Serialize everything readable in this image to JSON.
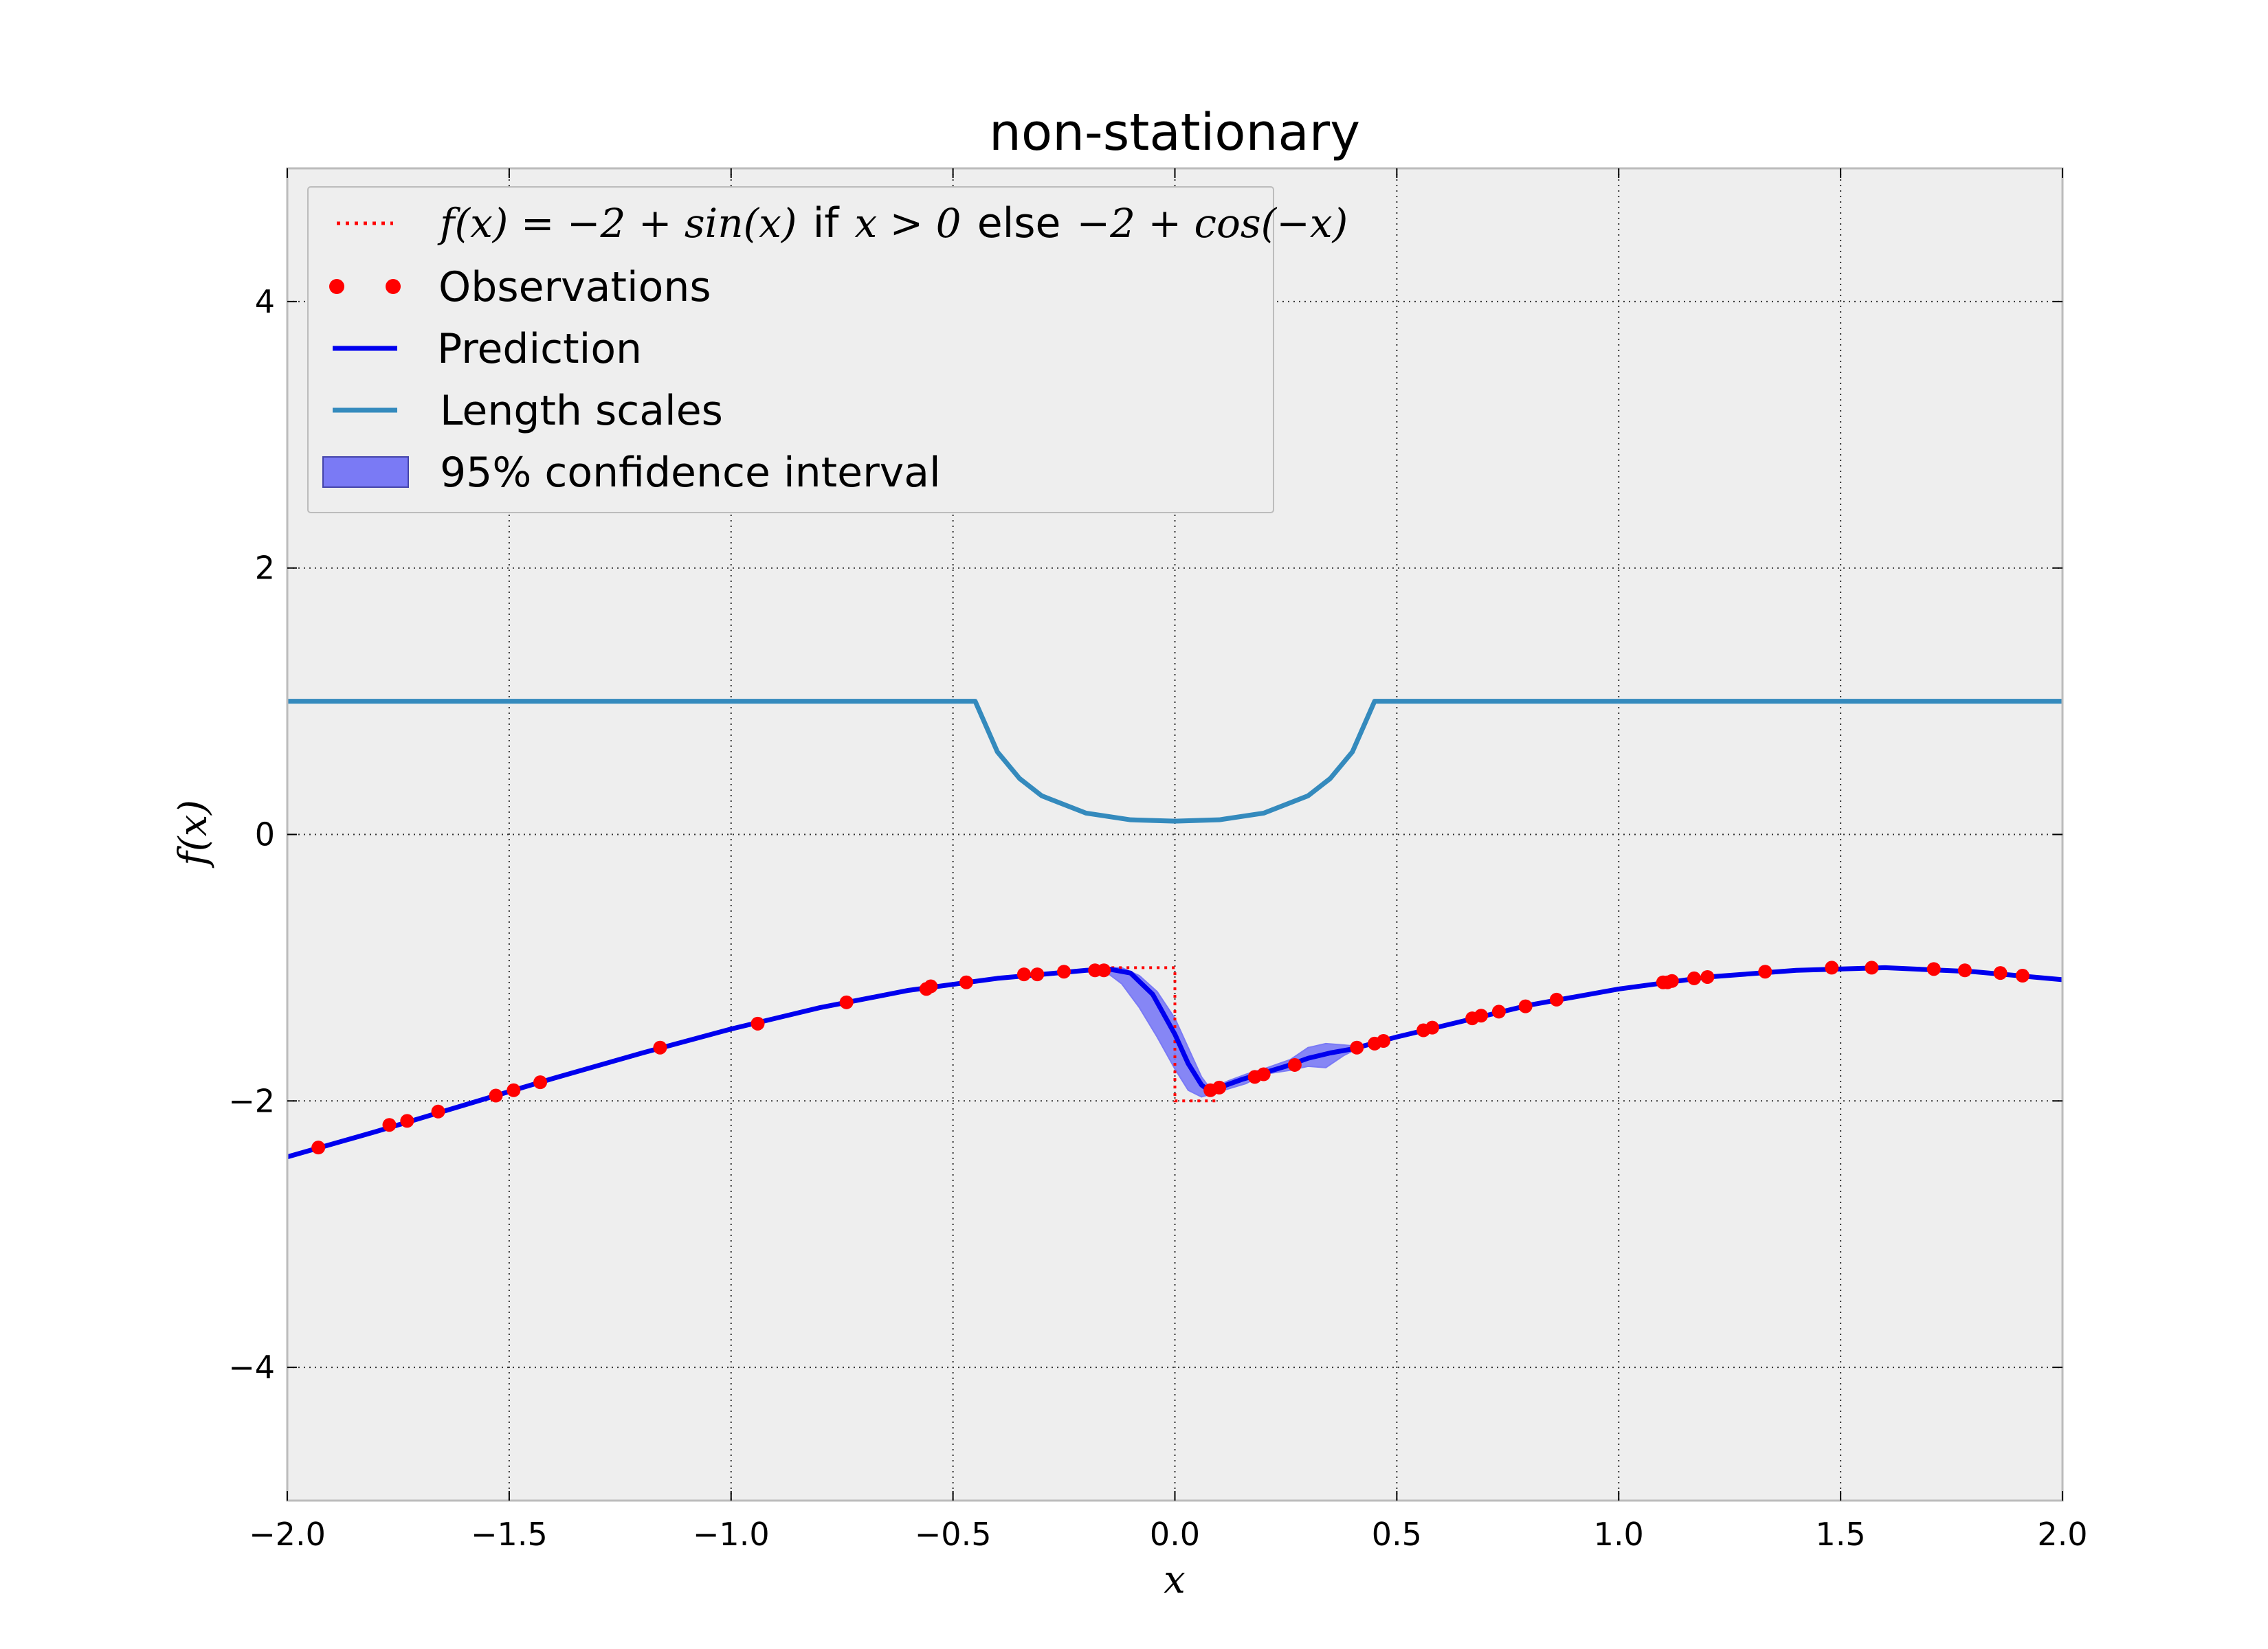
{
  "chart_data": {
    "type": "line",
    "title": "non-stationary",
    "xlabel": "x",
    "ylabel": "f(x)",
    "xlim": [
      -2.0,
      2.0
    ],
    "ylim": [
      -5,
      5
    ],
    "xticks": [
      -2.0,
      -1.5,
      -1.0,
      -0.5,
      0.0,
      0.5,
      1.0,
      1.5,
      2.0
    ],
    "xtick_labels": [
      "−2.0",
      "−1.5",
      "−1.0",
      "−0.5",
      "0.0",
      "0.5",
      "1.0",
      "1.5",
      "2.0"
    ],
    "yticks": [
      -4,
      -2,
      0,
      2,
      4
    ],
    "ytick_labels": [
      "−4",
      "−2",
      "0",
      "2",
      "4"
    ],
    "grid": true,
    "legend_position": "upper-left",
    "legend": {
      "function_math": "f(x) = −2 + sin(x)",
      "function_if": "if",
      "function_cond": "x > 0",
      "function_else": "else",
      "function_math2": "−2 + cos(−x)",
      "observations": "Observations",
      "prediction": "Prediction",
      "length_scales": "Length scales",
      "confidence": "95% confidence interval"
    },
    "colors": {
      "background": "#eeeeee",
      "true_function": "#ff0000",
      "observations": "#ff0000",
      "prediction": "#0000ee",
      "length_scales": "#348abd",
      "confidence": "#7a7af5"
    },
    "series": [
      {
        "name": "f(x) = −2 + sin(x) if x > 0 else −2 + cos(−x)",
        "style": "dotted",
        "x": [
          -0.16,
          0.0,
          0.0,
          0.02,
          0.05,
          0.08,
          0.1
        ],
        "y": [
          -1.0,
          -1.0,
          -2.0,
          -2.0,
          -2.0,
          -2.0,
          -2.0
        ]
      },
      {
        "name": "Observations",
        "style": "markers",
        "x": [
          -1.93,
          -1.77,
          -1.73,
          -1.66,
          -1.53,
          -1.49,
          -1.43,
          -1.16,
          -0.94,
          -0.74,
          -0.56,
          -0.55,
          -0.47,
          -0.34,
          -0.31,
          -0.25,
          -0.18,
          -0.16,
          0.08,
          0.1,
          0.18,
          0.2,
          0.27,
          0.41,
          0.45,
          0.47,
          0.56,
          0.58,
          0.67,
          0.69,
          0.73,
          0.79,
          0.86,
          1.1,
          1.11,
          1.12,
          1.17,
          1.2,
          1.33,
          1.48,
          1.57,
          1.71,
          1.78,
          1.86,
          1.91
        ],
        "y": [
          -2.35,
          -2.18,
          -2.15,
          -2.08,
          -1.96,
          -1.92,
          -1.86,
          -1.6,
          -1.42,
          -1.26,
          -1.16,
          -1.14,
          -1.11,
          -1.05,
          -1.05,
          -1.03,
          -1.02,
          -1.02,
          -1.92,
          -1.9,
          -1.82,
          -1.8,
          -1.73,
          -1.6,
          -1.57,
          -1.55,
          -1.47,
          -1.45,
          -1.38,
          -1.36,
          -1.33,
          -1.29,
          -1.24,
          -1.11,
          -1.11,
          -1.1,
          -1.08,
          -1.07,
          -1.03,
          -1.0,
          -1.0,
          -1.01,
          -1.02,
          -1.04,
          -1.06
        ]
      },
      {
        "name": "Prediction",
        "style": "solid",
        "x": [
          -2.0,
          -1.8,
          -1.6,
          -1.4,
          -1.2,
          -1.0,
          -0.8,
          -0.6,
          -0.4,
          -0.3,
          -0.2,
          -0.15,
          -0.1,
          -0.05,
          0.0,
          0.03,
          0.06,
          0.08,
          0.1,
          0.15,
          0.2,
          0.25,
          0.3,
          0.35,
          0.4,
          0.5,
          0.6,
          0.8,
          1.0,
          1.2,
          1.4,
          1.6,
          1.8,
          2.0
        ],
        "y": [
          -2.42,
          -2.23,
          -2.03,
          -1.83,
          -1.64,
          -1.46,
          -1.3,
          -1.17,
          -1.08,
          -1.05,
          -1.02,
          -1.01,
          -1.04,
          -1.2,
          -1.5,
          -1.72,
          -1.88,
          -1.93,
          -1.9,
          -1.84,
          -1.79,
          -1.74,
          -1.68,
          -1.64,
          -1.61,
          -1.52,
          -1.44,
          -1.28,
          -1.16,
          -1.07,
          -1.02,
          -1.0,
          -1.03,
          -1.09
        ]
      },
      {
        "name": "Length scales",
        "style": "solid",
        "x": [
          -2.0,
          -0.45,
          -0.4,
          -0.35,
          -0.3,
          -0.2,
          -0.1,
          0.0,
          0.1,
          0.2,
          0.3,
          0.35,
          0.4,
          0.45,
          2.0
        ],
        "y": [
          1.0,
          1.0,
          0.62,
          0.42,
          0.29,
          0.16,
          0.11,
          0.1,
          0.11,
          0.16,
          0.29,
          0.42,
          0.62,
          1.0,
          1.0
        ]
      },
      {
        "name": "95% confidence interval",
        "style": "band",
        "x": [
          -0.16,
          -0.12,
          -0.08,
          -0.04,
          0.0,
          0.03,
          0.06,
          0.08,
          0.12,
          0.16,
          0.2,
          0.26,
          0.3,
          0.34,
          0.38,
          0.41
        ],
        "y_upper": [
          -1.0,
          -1.0,
          -1.06,
          -1.18,
          -1.38,
          -1.6,
          -1.82,
          -1.91,
          -1.85,
          -1.8,
          -1.76,
          -1.69,
          -1.6,
          -1.57,
          -1.58,
          -1.59
        ],
        "y_lower": [
          -1.02,
          -1.12,
          -1.3,
          -1.52,
          -1.76,
          -1.92,
          -1.97,
          -1.95,
          -1.91,
          -1.87,
          -1.8,
          -1.77,
          -1.74,
          -1.75,
          -1.66,
          -1.61
        ]
      }
    ]
  }
}
